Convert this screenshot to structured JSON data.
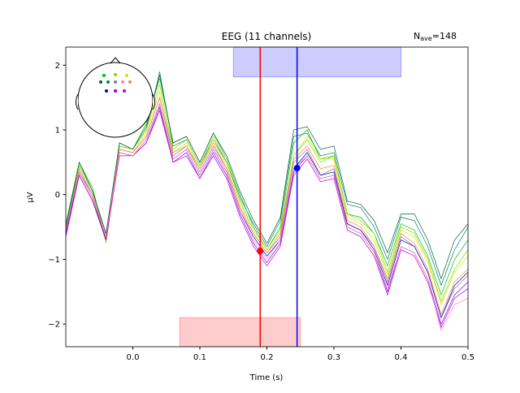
{
  "chart_data": {
    "type": "line",
    "title": "EEG (11 channels)",
    "nave": {
      "symbol": "N",
      "subscript": "ave",
      "text": "=148"
    },
    "x_label": "Time (s)",
    "y_label": "µV",
    "xlim": [
      -0.1,
      0.5
    ],
    "ylim": [
      -2.35,
      2.28
    ],
    "xticks": [
      {
        "value": 0,
        "label": "0.0"
      },
      0.1,
      0.2,
      0.3,
      0.4,
      0.5
    ],
    "yticks": [
      {
        "value": -2,
        "label": "−2"
      },
      {
        "value": -1,
        "label": "−1"
      },
      0,
      1,
      2
    ],
    "x": [
      -0.1,
      -0.08,
      -0.06,
      -0.04,
      -0.02,
      0,
      0.02,
      0.04,
      0.06,
      0.08,
      0.1,
      0.12,
      0.14,
      0.16,
      0.18,
      0.2,
      0.22,
      0.24,
      0.26,
      0.28,
      0.3,
      0.32,
      0.34,
      0.36,
      0.38,
      0.4,
      0.42,
      0.44,
      0.46,
      0.48,
      0.5
    ],
    "series": [
      {
        "color": "#008060",
        "values": [
          -0.5,
          0.45,
          0.05,
          -0.6,
          0.75,
          0.7,
          1.0,
          1.9,
          0.75,
          0.85,
          0.45,
          0.85,
          0.5,
          -0.05,
          -0.45,
          -0.8,
          -0.4,
          0.9,
          0.95,
          0.6,
          0.65,
          -0.15,
          -0.2,
          -0.5,
          -1.0,
          -0.35,
          -0.4,
          -0.8,
          -1.4,
          -0.85,
          -0.5
        ]
      },
      {
        "color": "#00c000",
        "values": [
          -0.45,
          0.5,
          0.1,
          -0.7,
          0.8,
          0.7,
          1.1,
          1.8,
          0.8,
          0.9,
          0.5,
          0.95,
          0.55,
          0.0,
          -0.5,
          -0.85,
          -0.5,
          0.8,
          1.0,
          0.55,
          0.6,
          -0.3,
          -0.35,
          -0.6,
          -1.1,
          -0.45,
          -0.55,
          -0.95,
          -1.55,
          -1.0,
          -0.7
        ]
      },
      {
        "color": "#80e000",
        "values": [
          -0.6,
          0.45,
          0.05,
          -0.75,
          0.75,
          0.7,
          1.0,
          1.7,
          0.7,
          0.85,
          0.45,
          0.9,
          0.5,
          -0.1,
          -0.55,
          -0.85,
          -0.55,
          0.6,
          0.85,
          0.5,
          0.6,
          -0.3,
          -0.4,
          -0.6,
          -1.2,
          -0.5,
          -0.6,
          -1.0,
          -1.65,
          -1.15,
          -0.85
        ]
      },
      {
        "color": "#e0e000",
        "values": [
          -0.55,
          0.4,
          0.0,
          -0.65,
          0.7,
          0.65,
          0.95,
          1.6,
          0.65,
          0.8,
          0.4,
          0.85,
          0.45,
          -0.15,
          -0.55,
          -0.85,
          -0.55,
          0.6,
          0.9,
          0.55,
          0.55,
          -0.35,
          -0.45,
          -0.7,
          -1.25,
          -0.55,
          -0.65,
          -1.05,
          -1.7,
          -1.2,
          -0.95
        ]
      },
      {
        "color": "#808080",
        "values": [
          -0.6,
          0.35,
          0.0,
          -0.65,
          0.7,
          0.65,
          0.9,
          1.5,
          0.6,
          0.75,
          0.35,
          0.75,
          0.4,
          -0.2,
          -0.6,
          -0.9,
          -0.65,
          0.5,
          0.7,
          0.3,
          0.4,
          -0.45,
          -0.55,
          -0.8,
          -1.35,
          -0.65,
          -0.8,
          -1.2,
          -1.9,
          -1.45,
          -1.25
        ]
      },
      {
        "color": "#ff8040",
        "values": [
          -0.55,
          0.4,
          0.0,
          -0.65,
          0.7,
          0.65,
          0.9,
          1.5,
          0.65,
          0.75,
          0.4,
          0.8,
          0.4,
          -0.2,
          -0.6,
          -0.9,
          -0.6,
          0.55,
          0.75,
          0.4,
          0.45,
          -0.4,
          -0.5,
          -0.8,
          -1.3,
          -0.6,
          -0.75,
          -1.15,
          -1.85,
          -1.35,
          -1.15
        ]
      },
      {
        "color": "#0000c0",
        "values": [
          -0.6,
          0.35,
          -0.05,
          -0.7,
          0.65,
          0.6,
          0.85,
          1.4,
          0.55,
          0.7,
          0.3,
          0.7,
          0.35,
          -0.25,
          -0.65,
          -0.95,
          -0.7,
          0.4,
          0.65,
          0.3,
          0.35,
          -0.45,
          -0.55,
          -0.85,
          -1.4,
          -0.7,
          -0.8,
          -1.2,
          -1.9,
          -1.4,
          -1.2
        ]
      },
      {
        "color": "#8000ff",
        "values": [
          -0.65,
          0.3,
          -0.1,
          -0.7,
          0.65,
          0.6,
          0.8,
          1.35,
          0.5,
          0.65,
          0.25,
          0.65,
          0.3,
          -0.3,
          -0.75,
          -1.05,
          -0.75,
          0.35,
          0.6,
          0.25,
          0.3,
          -0.5,
          -0.6,
          -0.9,
          -1.5,
          -0.8,
          -0.9,
          -1.3,
          -2.0,
          -1.55,
          -1.35
        ]
      },
      {
        "color": "#c000c0",
        "values": [
          -0.6,
          0.3,
          -0.1,
          -0.7,
          0.6,
          0.6,
          0.8,
          1.3,
          0.5,
          0.6,
          0.25,
          0.6,
          0.25,
          -0.35,
          -0.8,
          -1.1,
          -0.8,
          0.3,
          0.55,
          0.2,
          0.25,
          -0.55,
          -0.65,
          -0.95,
          -1.55,
          -0.85,
          -0.95,
          -1.35,
          -2.05,
          -1.6,
          -1.45
        ]
      },
      {
        "color": "#ff80c0",
        "values": [
          -0.55,
          0.35,
          -0.05,
          -0.65,
          0.65,
          0.6,
          0.85,
          1.4,
          0.55,
          0.7,
          0.3,
          0.7,
          0.35,
          -0.25,
          -0.7,
          -1.0,
          -0.7,
          0.4,
          0.6,
          0.25,
          0.3,
          -0.5,
          -0.6,
          -0.9,
          -1.45,
          -0.8,
          -0.9,
          -1.3,
          -2.1,
          -1.7,
          -1.6
        ]
      },
      {
        "color": "#006040",
        "values": [
          -0.5,
          0.5,
          0.05,
          -0.6,
          0.8,
          0.7,
          1.05,
          1.85,
          0.8,
          0.9,
          0.5,
          0.95,
          0.6,
          0.05,
          -0.4,
          -0.75,
          -0.35,
          1.0,
          1.05,
          0.7,
          0.75,
          -0.1,
          -0.15,
          -0.4,
          -0.9,
          -0.3,
          -0.3,
          -0.7,
          -1.3,
          -0.7,
          -0.45
        ]
      }
    ],
    "spans": [
      {
        "xlim": [
          0.15,
          0.4
        ],
        "ylim": [
          1.82,
          2.28
        ],
        "color": "#0000ff"
      },
      {
        "xlim": [
          0.07,
          0.25
        ],
        "ylim": [
          -2.35,
          -1.9
        ],
        "color": "#ff0000"
      }
    ],
    "markers": [
      {
        "x": 0.19,
        "y": -0.87,
        "color": "#ff0000"
      },
      {
        "x": 0.245,
        "y": 0.41,
        "color": "#0000ff"
      }
    ]
  }
}
